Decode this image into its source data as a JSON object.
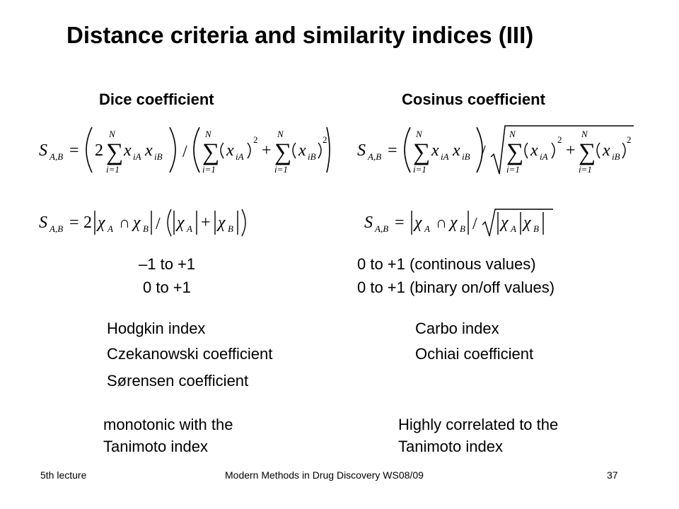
{
  "slide": {
    "title": "Distance criteria and similarity indices (III)"
  },
  "dice": {
    "heading": "Dice coefficient",
    "range_line1": "–1 to +1",
    "range_line2": "0  to +1",
    "aliases": [
      "Hodgkin index",
      "Czekanowski coefficient",
      "Sørensen coefficient"
    ],
    "note_line1": "monotonic with the",
    "note_line2": "Tanimoto index"
  },
  "cosinus": {
    "heading": "Cosinus coefficient",
    "range_line1": "0 to +1 (continous values)",
    "range_line2": "0 to +1 (binary on/off values)",
    "aliases": [
      "Carbo index",
      "Ochiai coefficient"
    ],
    "note_line1": "Highly correlated to the",
    "note_line2": "Tanimoto index"
  },
  "formula_symbols": {
    "S": "S",
    "AB": "A,B",
    "two": "2",
    "N": "N",
    "i1": "i=1",
    "x": "x",
    "iA": "iA",
    "iB": "iB",
    "sq": "2",
    "plus": "+",
    "slash": "/",
    "eq": "=",
    "chi": "χ",
    "A": "A",
    "B": "B",
    "cap": "∩",
    "sum": "∑"
  },
  "footer": {
    "left": "5th lecture",
    "center": "Modern Methods in Drug Discovery WS08/09",
    "page": "37"
  }
}
